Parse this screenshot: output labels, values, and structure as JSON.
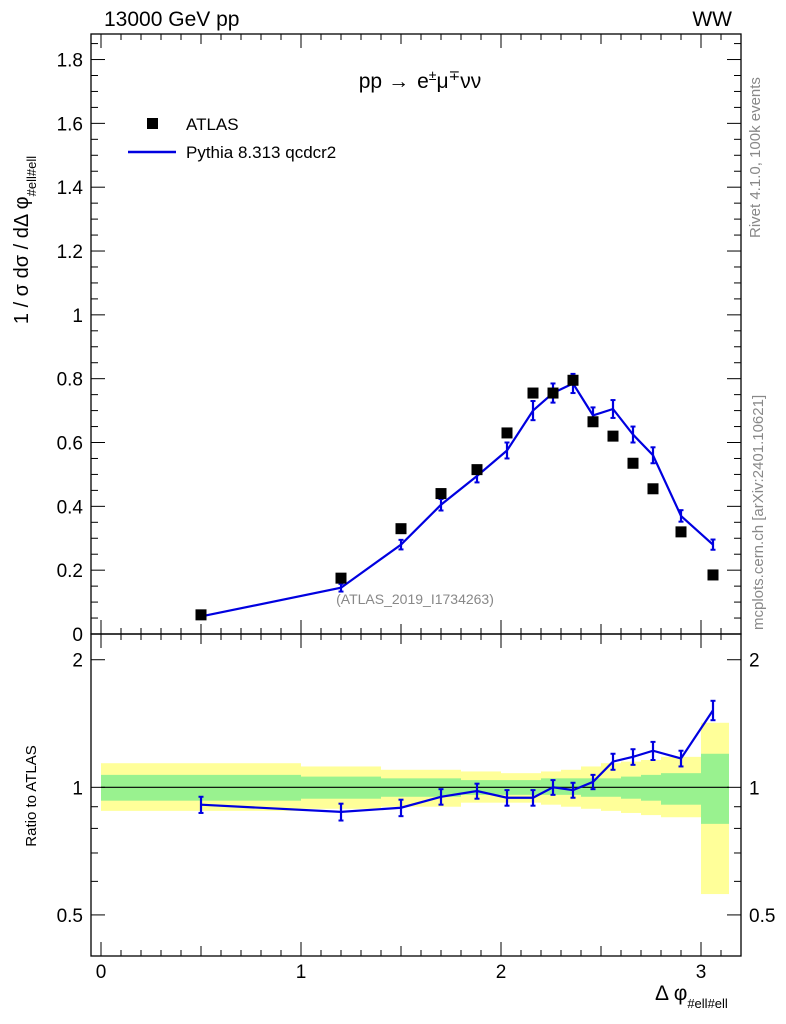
{
  "header": {
    "left": "13000 GeV pp",
    "right": "WW"
  },
  "side_labels": {
    "rivet": "Rivet 4.1.0,  100k events",
    "mcplots": "mcplots.cern.ch [arXiv:2401.10621]"
  },
  "colors": {
    "data": "#000000",
    "mc": "#0000e0",
    "band_inner": "#99f28f",
    "band_outer": "#ffff99"
  },
  "chart_data": [
    {
      "type": "scatter",
      "panel": "main",
      "title": "pp → e±μ∓νν",
      "title_parts": {
        "pp": "pp",
        "arrow": "→",
        "e": "e",
        "pm": "±",
        "mu": "μ",
        "mp": "∓",
        "nunu": "νν"
      },
      "ylabel": "1 / σ  dσ / dΔ φ",
      "ylabel_sub": "#ell#ell",
      "ylim": [
        0,
        1.88
      ],
      "yticks": [
        0,
        0.2,
        0.4,
        0.6,
        0.8,
        1,
        1.2,
        1.4,
        1.6,
        1.8
      ],
      "ytick_labels": [
        "0",
        "0.2",
        "0.4",
        "0.6",
        "0.8",
        "1",
        "1.2",
        "1.4",
        "1.6",
        "1.8"
      ],
      "xlim": [
        -0.05,
        3.2
      ],
      "watermark": "(ATLAS_2019_I1734263)",
      "legend": {
        "placement": "top-left",
        "entries": [
          "ATLAS",
          "Pythia 8.313 qcdcr2"
        ]
      },
      "series": [
        {
          "name": "ATLAS",
          "style": "markers",
          "x": [
            0.5,
            1.2,
            1.5,
            1.7,
            1.88,
            2.03,
            2.16,
            2.26,
            2.36,
            2.46,
            2.56,
            2.66,
            2.76,
            2.9,
            3.06
          ],
          "values": [
            0.06,
            0.175,
            0.33,
            0.44,
            0.515,
            0.63,
            0.755,
            0.755,
            0.795,
            0.665,
            0.62,
            0.535,
            0.455,
            0.32,
            0.185
          ]
        },
        {
          "name": "Pythia 8.313 qcdcr2",
          "style": "line",
          "x": [
            0.5,
            1.2,
            1.5,
            1.7,
            1.88,
            2.03,
            2.16,
            2.26,
            2.36,
            2.46,
            2.56,
            2.66,
            2.76,
            2.9,
            3.06
          ],
          "values": [
            0.055,
            0.145,
            0.28,
            0.405,
            0.495,
            0.575,
            0.7,
            0.755,
            0.785,
            0.685,
            0.705,
            0.625,
            0.56,
            0.37,
            0.28
          ],
          "errors": [
            0.008,
            0.012,
            0.015,
            0.018,
            0.02,
            0.025,
            0.03,
            0.03,
            0.03,
            0.025,
            0.028,
            0.025,
            0.025,
            0.018,
            0.016
          ]
        }
      ]
    },
    {
      "type": "line",
      "panel": "ratio",
      "ylabel": "Ratio to ATLAS",
      "ylim": [
        0.4,
        2.3
      ],
      "ylog": true,
      "yticks": [
        0.5,
        1,
        2
      ],
      "ytick_labels": [
        "0.5",
        "1",
        "2"
      ],
      "xlim": [
        -0.05,
        3.2
      ],
      "xlabel": "Δ φ",
      "xlabel_sub": "#ell#ell",
      "xticks": [
        0,
        1,
        2,
        3
      ],
      "xtick_labels": [
        "0",
        "1",
        "2",
        "3"
      ],
      "bands": {
        "edges": [
          0,
          1,
          1.4,
          1.8,
          2.0,
          2.1,
          2.2,
          2.3,
          2.4,
          2.5,
          2.6,
          2.7,
          2.8,
          3.0,
          3.14
        ],
        "inner_lo": [
          0.93,
          0.94,
          0.95,
          0.96,
          0.96,
          0.96,
          0.96,
          0.96,
          0.95,
          0.95,
          0.94,
          0.93,
          0.91,
          0.82
        ],
        "inner_hi": [
          1.07,
          1.06,
          1.05,
          1.04,
          1.04,
          1.04,
          1.05,
          1.05,
          1.05,
          1.05,
          1.06,
          1.07,
          1.08,
          1.2
        ],
        "outer_lo": [
          0.88,
          0.89,
          0.9,
          0.92,
          0.92,
          0.92,
          0.91,
          0.9,
          0.89,
          0.88,
          0.87,
          0.86,
          0.85,
          0.56
        ],
        "outer_hi": [
          1.14,
          1.12,
          1.1,
          1.09,
          1.08,
          1.08,
          1.09,
          1.1,
          1.12,
          1.14,
          1.15,
          1.16,
          1.18,
          1.42
        ]
      },
      "series": [
        {
          "name": "Pythia 8.313 qcdcr2",
          "x": [
            0.5,
            1.2,
            1.5,
            1.7,
            1.88,
            2.03,
            2.16,
            2.26,
            2.36,
            2.46,
            2.56,
            2.66,
            2.76,
            2.9,
            3.06
          ],
          "values": [
            0.91,
            0.875,
            0.895,
            0.95,
            0.98,
            0.945,
            0.945,
            1.0,
            0.985,
            1.03,
            1.15,
            1.18,
            1.22,
            1.17,
            1.52
          ],
          "errors": [
            0.04,
            0.04,
            0.04,
            0.04,
            0.04,
            0.04,
            0.04,
            0.04,
            0.04,
            0.04,
            0.05,
            0.05,
            0.06,
            0.05,
            0.08
          ]
        }
      ]
    }
  ]
}
